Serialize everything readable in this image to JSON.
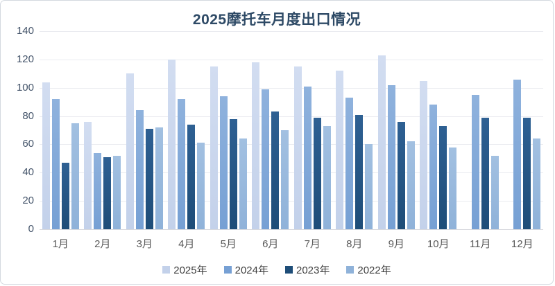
{
  "title": "2025摩托车月度出口情况",
  "chart_data": {
    "type": "bar",
    "title": "2025摩托车月度出口情况",
    "categories": [
      "1月",
      "2月",
      "3月",
      "4月",
      "5月",
      "6月",
      "7月",
      "8月",
      "9月",
      "10月",
      "11月",
      "12月"
    ],
    "series": [
      {
        "name": "2025年",
        "color": "#c3d1ea",
        "color_light": "#d2ddf1",
        "values": [
          104,
          76,
          110,
          120,
          115,
          118,
          115,
          112,
          123,
          105,
          null,
          null
        ]
      },
      {
        "name": "2024年",
        "color": "#76a0d4",
        "color_light": "#8fb2dd",
        "values": [
          92,
          54,
          84,
          92,
          94,
          99,
          101,
          93,
          102,
          88,
          95,
          106
        ]
      },
      {
        "name": "2023年",
        "color": "#1e4d78",
        "color_light": "#2e6093",
        "values": [
          47,
          51,
          71,
          74,
          78,
          83,
          79,
          81,
          76,
          73,
          79,
          79
        ]
      },
      {
        "name": "2022年",
        "color": "#8fb2d9",
        "color_light": "#a2c0e1",
        "values": [
          75,
          52,
          72,
          61,
          64,
          70,
          73,
          60,
          62,
          58,
          52,
          64
        ]
      }
    ],
    "xlabel": "",
    "ylabel": "",
    "ylim": [
      0,
      140
    ],
    "y_ticks": [
      0,
      20,
      40,
      60,
      80,
      100,
      120,
      140
    ],
    "grid": true,
    "legend_position": "bottom"
  }
}
